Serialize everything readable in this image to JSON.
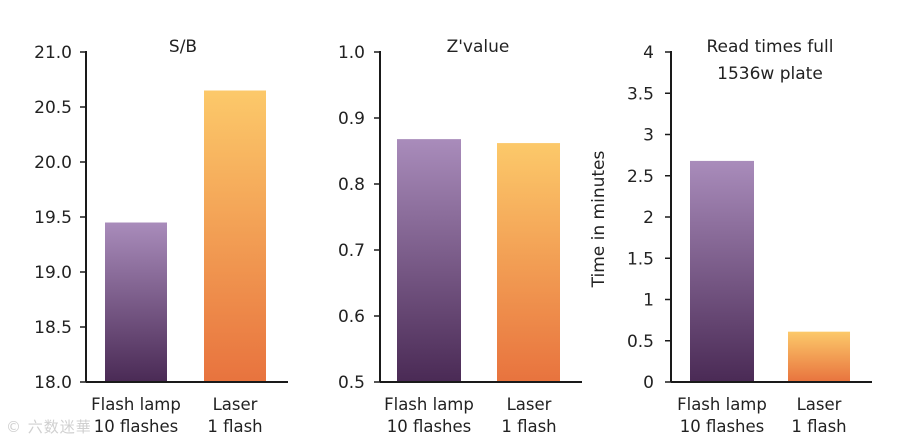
{
  "colors": {
    "purple_top": "#a98cbb",
    "purple_bottom": "#4a2a55",
    "orange_top": "#fcc96a",
    "orange_bottom": "#e8733e",
    "axis": "#1a1a1a",
    "text": "#222222"
  },
  "watermark": "© 六数迷華",
  "chart_data": [
    {
      "type": "bar",
      "title": [
        "S/B"
      ],
      "categories": [
        [
          "Flash lamp",
          "10 flashes"
        ],
        [
          "Laser",
          "1 flash"
        ]
      ],
      "values": [
        19.45,
        20.65
      ],
      "ylim": [
        18.0,
        21.0
      ],
      "yticks": [
        18.0,
        18.5,
        19.0,
        19.5,
        20.0,
        20.5,
        21.0
      ],
      "ytick_labels": [
        "18.0",
        "18.5",
        "19.0",
        "19.5",
        "20.0",
        "20.5",
        "21.0"
      ],
      "ylabel": "",
      "bar_colors": [
        "purple",
        "orange"
      ]
    },
    {
      "type": "bar",
      "title": [
        "Z'value"
      ],
      "categories": [
        [
          "Flash lamp",
          "10 flashes"
        ],
        [
          "Laser",
          "1 flash"
        ]
      ],
      "values": [
        0.868,
        0.862
      ],
      "ylim": [
        0.5,
        1.0
      ],
      "yticks": [
        0.5,
        0.6,
        0.7,
        0.8,
        0.9,
        1.0
      ],
      "ytick_labels": [
        "0.5",
        "0.6",
        "0.7",
        "0.8",
        "0.9",
        "1.0"
      ],
      "ylabel": "",
      "bar_colors": [
        "purple",
        "orange"
      ]
    },
    {
      "type": "bar",
      "title": [
        "Read times full",
        "1536w plate"
      ],
      "categories": [
        [
          "Flash lamp",
          "10 flashes"
        ],
        [
          "Laser",
          "1 flash"
        ]
      ],
      "values": [
        2.68,
        0.61
      ],
      "ylim": [
        0,
        4
      ],
      "yticks": [
        0,
        0.5,
        1,
        1.5,
        2,
        2.5,
        3,
        3.5,
        4
      ],
      "ytick_labels": [
        "0",
        "0.5",
        "1",
        "1.5",
        "2",
        "2.5",
        "3",
        "3.5",
        "4"
      ],
      "ylabel": "Time in minutes",
      "bar_colors": [
        "purple",
        "orange"
      ]
    }
  ]
}
